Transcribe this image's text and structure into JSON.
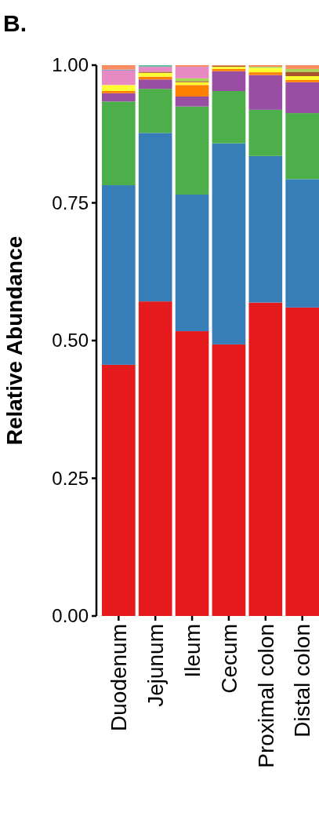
{
  "chart_data": {
    "type": "bar",
    "title": "B.",
    "ylabel": "Relative Abundance",
    "stacked": true,
    "categories": [
      "Duodenum",
      "Jejunum",
      "Ileum",
      "Cecum",
      "Proximal colon",
      "Distal colon"
    ],
    "series": [
      {
        "color": "#e41a1c",
        "values": [
          0.456,
          0.571,
          0.517,
          0.493,
          0.569,
          0.56
        ]
      },
      {
        "color": "#377eb8",
        "values": [
          0.326,
          0.306,
          0.248,
          0.365,
          0.266,
          0.233
        ]
      },
      {
        "color": "#4daf4a",
        "values": [
          0.152,
          0.08,
          0.16,
          0.095,
          0.084,
          0.12
        ]
      },
      {
        "color": "#984ea3",
        "values": [
          0.015,
          0.017,
          0.018,
          0.036,
          0.063,
          0.056
        ]
      },
      {
        "color": "#ff7f00",
        "values": [
          0.004,
          0.005,
          0.021,
          0.004,
          0.005,
          0.004
        ]
      },
      {
        "color": "#ffff33",
        "values": [
          0.011,
          0.007,
          0.005,
          0.004,
          0.008,
          0.007
        ]
      },
      {
        "color": "#a65628",
        "values": [
          0,
          0.002,
          0.002,
          0.002,
          0,
          0.008
        ]
      },
      {
        "color": "#a6d854",
        "values": [
          0,
          0,
          0.005,
          0,
          0.002,
          0.005
        ]
      },
      {
        "color": "#e78ac3",
        "values": [
          0.026,
          0.009,
          0.021,
          0,
          0,
          0
        ]
      },
      {
        "color": "#8da0cb",
        "values": [
          0.002,
          0,
          0,
          0,
          0,
          0
        ]
      },
      {
        "color": "#66c2a5",
        "values": [
          0,
          0.003,
          0,
          0,
          0,
          0
        ]
      },
      {
        "color": "#fc8d62",
        "values": [
          0.008,
          0,
          0.003,
          0.001,
          0.003,
          0.007
        ]
      }
    ],
    "ylim": [
      0,
      1
    ],
    "yticks": [
      {
        "value": 0,
        "label": "0.00"
      },
      {
        "value": 0.25,
        "label": "0.25"
      },
      {
        "value": 0.5,
        "label": "0.50"
      },
      {
        "value": 0.75,
        "label": "0.75"
      },
      {
        "value": 1,
        "label": "1.00"
      }
    ],
    "grid": false
  }
}
